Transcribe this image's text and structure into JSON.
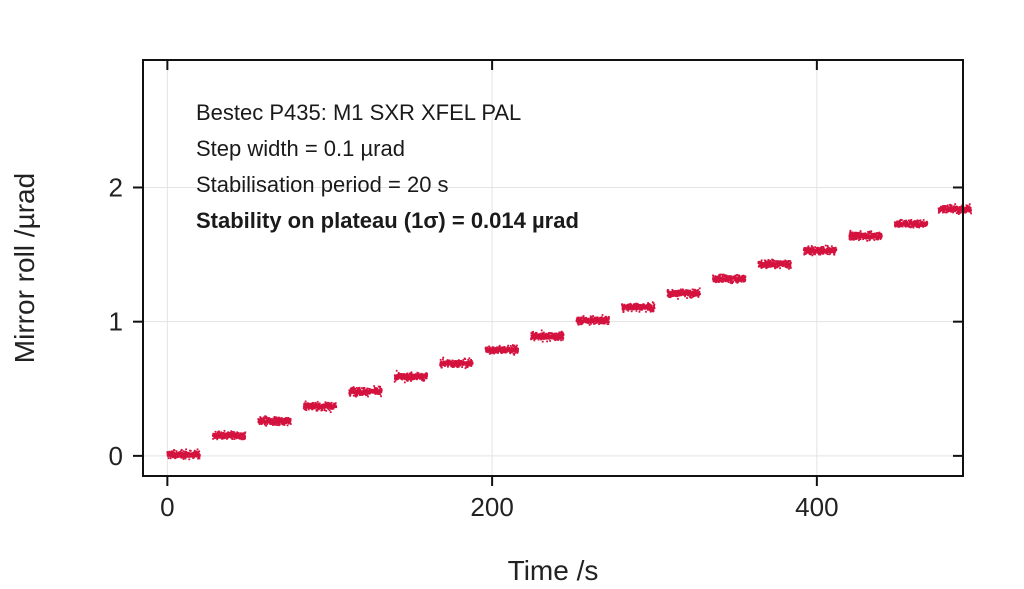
{
  "chart_data": {
    "type": "scatter",
    "xlabel": "Time /s",
    "ylabel": "Mirror roll /µrad",
    "xlim": [
      -15,
      490
    ],
    "ylim": [
      -0.15,
      2.95
    ],
    "xticks": [
      0,
      200,
      400
    ],
    "xtick_labels": [
      "0",
      "200",
      "400"
    ],
    "yticks": [
      0,
      1,
      2
    ],
    "ytick_labels": [
      "0",
      "1",
      "2"
    ],
    "grid": true,
    "series_color": "#d4133f",
    "annotations": [
      {
        "text": "Bestec P435: M1 SXR XFEL PAL",
        "bold": false
      },
      {
        "text": "Step width = 0.1 µrad",
        "bold": false
      },
      {
        "text": "Stabilisation period = 20 s",
        "bold": false
      },
      {
        "text": "Stability on plateau (1σ) = 0.014 µrad",
        "bold": true
      }
    ],
    "plateau_noise_sigma": 0.014,
    "plateaus": [
      {
        "t_start": 0,
        "t_end": 20,
        "value": 0.01
      },
      {
        "t_start": 28,
        "t_end": 48,
        "value": 0.15
      },
      {
        "t_start": 56,
        "t_end": 76,
        "value": 0.26
      },
      {
        "t_start": 84,
        "t_end": 104,
        "value": 0.37
      },
      {
        "t_start": 112,
        "t_end": 132,
        "value": 0.48
      },
      {
        "t_start": 140,
        "t_end": 160,
        "value": 0.59
      },
      {
        "t_start": 168,
        "t_end": 188,
        "value": 0.69
      },
      {
        "t_start": 196,
        "t_end": 216,
        "value": 0.79
      },
      {
        "t_start": 224,
        "t_end": 244,
        "value": 0.89
      },
      {
        "t_start": 252,
        "t_end": 272,
        "value": 1.01
      },
      {
        "t_start": 280,
        "t_end": 300,
        "value": 1.11
      },
      {
        "t_start": 308,
        "t_end": 328,
        "value": 1.21
      },
      {
        "t_start": 336,
        "t_end": 356,
        "value": 1.32
      },
      {
        "t_start": 364,
        "t_end": 384,
        "value": 1.43
      },
      {
        "t_start": 392,
        "t_end": 412,
        "value": 1.53
      },
      {
        "t_start": 420,
        "t_end": 440,
        "value": 1.64
      },
      {
        "t_start": 448,
        "t_end": 468,
        "value": 1.73
      },
      {
        "t_start": 475,
        "t_end": 495,
        "value": 1.84
      }
    ]
  }
}
